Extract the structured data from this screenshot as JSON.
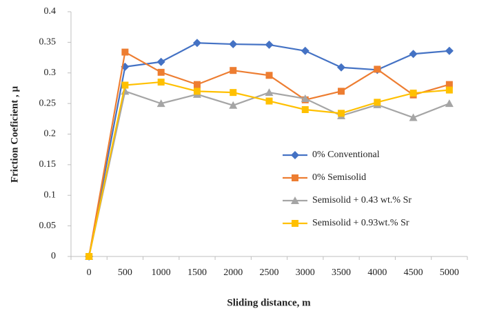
{
  "chart_data": {
    "type": "line",
    "x_label": "Sliding distance, m",
    "y_label": "Friction Coeficient , µ",
    "categories": [
      "0",
      "500",
      "1000",
      "1500",
      "2000",
      "2500",
      "3000",
      "3500",
      "4000",
      "4500",
      "5000"
    ],
    "series": [
      {
        "name": "0% Conventional",
        "color": "#4472c4",
        "marker": "diamond",
        "values": [
          0,
          0.31,
          0.318,
          0.349,
          0.347,
          0.346,
          0.336,
          0.309,
          0.305,
          0.331,
          0.336
        ]
      },
      {
        "name": "0% Semisolid",
        "color": "#ed7d31",
        "marker": "square",
        "values": [
          0,
          0.334,
          0.301,
          0.281,
          0.304,
          0.296,
          0.256,
          0.27,
          0.306,
          0.264,
          0.281
        ]
      },
      {
        "name": "Semisolid + 0.43 wt.% Sr",
        "color": "#a5a5a5",
        "marker": "triangle",
        "values": [
          0,
          0.27,
          0.25,
          0.265,
          0.247,
          0.268,
          0.258,
          0.23,
          0.248,
          0.227,
          0.25
        ]
      },
      {
        "name": "Semisolid + 0.93wt.% Sr",
        "color": "#ffc000",
        "marker": "square",
        "values": [
          0,
          0.28,
          0.285,
          0.27,
          0.268,
          0.254,
          0.24,
          0.234,
          0.252,
          0.267,
          0.272
        ]
      }
    ],
    "ylim": [
      0,
      0.4
    ],
    "yticks": [
      0,
      0.05,
      0.1,
      0.15,
      0.2,
      0.25,
      0.3,
      0.35,
      0.4
    ]
  }
}
